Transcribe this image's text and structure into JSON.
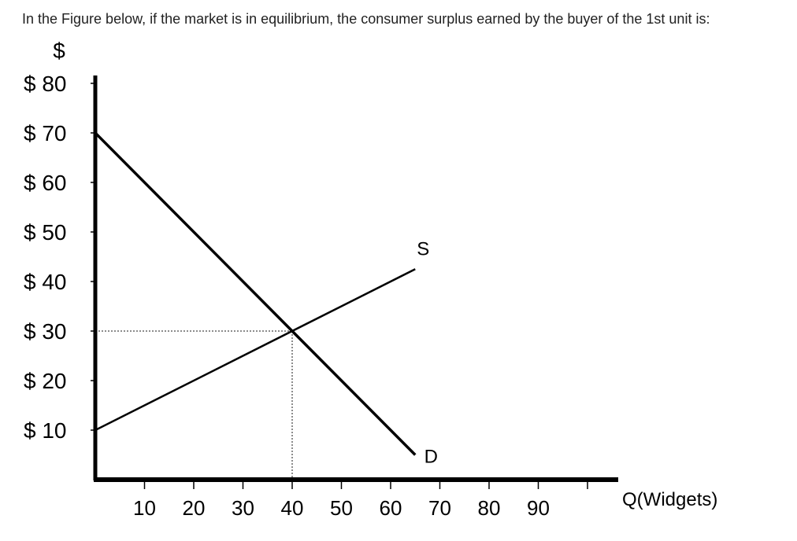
{
  "question": "In the Figure below, if the market is in equilibrium, the consumer surplus earned by the buyer of the 1st unit is:",
  "chart_data": {
    "type": "line",
    "ylabel": "$",
    "xlabel": "Q(Widgets)",
    "x_ticks": [
      10,
      20,
      30,
      40,
      50,
      60,
      70,
      80,
      90
    ],
    "y_ticks": [
      10,
      20,
      30,
      40,
      50,
      60,
      70,
      80
    ],
    "y_tick_labels": [
      "$ 10",
      "$ 20",
      "$ 30",
      "$ 40",
      "$ 50",
      "$ 60",
      "$ 70",
      "$ 80"
    ],
    "xlim": [
      0,
      100
    ],
    "ylim": [
      0,
      80
    ],
    "series": [
      {
        "name": "D",
        "x": [
          0,
          65
        ],
        "y": [
          70,
          5
        ]
      },
      {
        "name": "S",
        "x": [
          0,
          65
        ],
        "y": [
          10,
          42.5
        ]
      }
    ],
    "equilibrium": {
      "x": 40,
      "y": 30
    },
    "grid": false,
    "line_color": "#000000"
  }
}
